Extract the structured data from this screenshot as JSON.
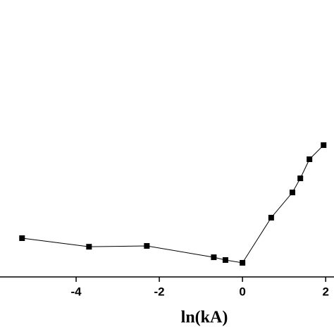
{
  "chart_data": {
    "type": "line",
    "x_label": "ln(kA)",
    "x": [
      -5.3,
      -3.69,
      -2.3,
      -0.69,
      -0.41,
      0,
      0.69,
      1.2,
      1.39,
      1.61,
      1.95
    ],
    "series": [
      {
        "color": "#000000",
        "values": [
          1.4,
          1.09,
          1.12,
          0.71,
          0.61,
          0.51,
          2.14,
          3.05,
          3.56,
          4.25,
          4.76
        ]
      }
    ],
    "xlim": [
      -5.83,
      2.2
    ],
    "xticks": [
      -4,
      -2,
      0,
      2
    ],
    "ylim": [
      0,
      10
    ]
  }
}
